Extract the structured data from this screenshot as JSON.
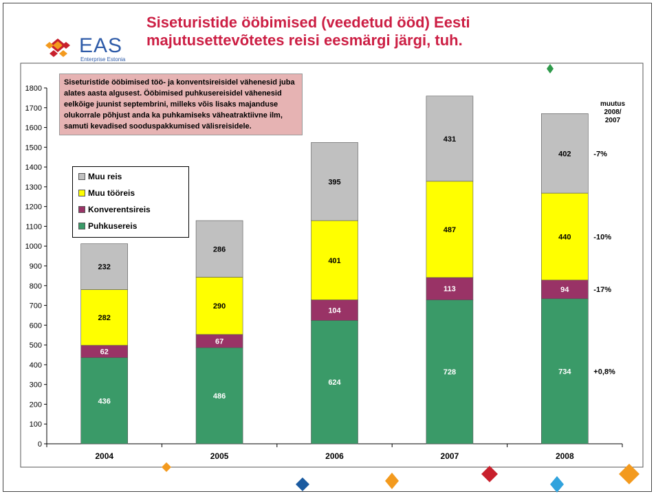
{
  "logo": {
    "name": "EAS",
    "tagline": "Enterprise Estonia"
  },
  "chart_data": {
    "type": "bar",
    "stacked": true,
    "title": "Siseturistide ööbimised (veedetud ööd) Eesti majutusettevõtetes reisi eesmärgi järgi, tuh.",
    "annotation": "Siseturistide ööbimised töö- ja konventsireisidel vähenesid juba alates aasta algusest. Ööbimised puhkusereisidel vähenesid eelkõige juunist septembrini, milleks võis lisaks majanduse olukorrale põhjust anda ka puhkamiseks väheatraktiivne ilm, samuti kevadised sooduspakkumised välisreisidele.",
    "change_header": "muutus 2008/ 2007",
    "categories": [
      "2004",
      "2005",
      "2006",
      "2007",
      "2008"
    ],
    "series": [
      {
        "name": "Puhkusereis",
        "color": "#3a9a68",
        "label_color": "#ffffff",
        "values": [
          436,
          486,
          624,
          728,
          734
        ],
        "change": "+0,8%"
      },
      {
        "name": "Konverentsireis",
        "color": "#993366",
        "label_color": "#ffffff",
        "values": [
          62,
          67,
          104,
          113,
          94
        ],
        "change": "-17%"
      },
      {
        "name": "Muu tööreis",
        "color": "#ffff00",
        "label_color": "#000000",
        "values": [
          282,
          290,
          401,
          487,
          440
        ],
        "change": "-10%"
      },
      {
        "name": "Muu reis",
        "color": "#c0c0c0",
        "label_color": "#000000",
        "values": [
          232,
          286,
          395,
          431,
          402
        ],
        "change": "-7%"
      }
    ],
    "ylim": [
      0,
      1800
    ],
    "yticks": [
      0,
      100,
      200,
      300,
      400,
      500,
      600,
      700,
      800,
      900,
      1000,
      1100,
      1200,
      1300,
      1400,
      1500,
      1600,
      1700,
      1800
    ],
    "grid": false
  }
}
